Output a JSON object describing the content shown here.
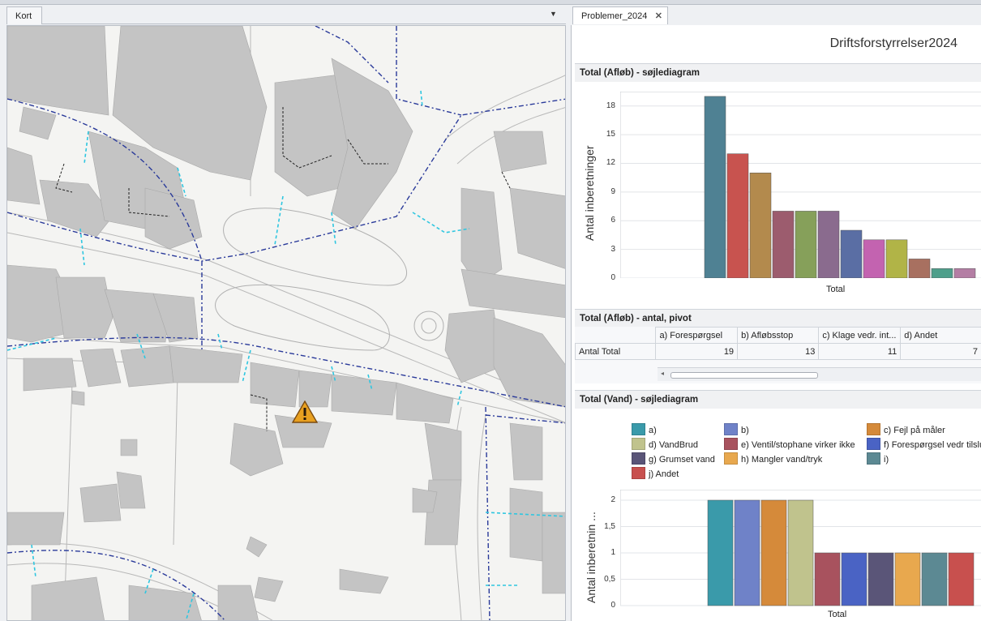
{
  "tabs": {
    "map": "Kort",
    "report": "Problemer_2024",
    "close_glyph": "✕",
    "dropdown_glyph": "▼"
  },
  "report": {
    "title": "Driftsforstyrrelser2024",
    "section1_title": "Total (Afløb) - søjlediagram",
    "section2_title": "Total (Afløb) - antal, pivot",
    "section3_title": "Total (Vand) - søjlediagram"
  },
  "pivot": {
    "columns": [
      "a) Forespørgsel",
      "b) Afløbsstop",
      "c) Klage vedr. int...",
      "d) Andet"
    ],
    "row_label": "Antal Total",
    "values": [
      "19",
      "13",
      "11",
      "7"
    ]
  },
  "map": {
    "warning_icon": "warning-triangle-icon",
    "warning_color": "#e8a020"
  },
  "chart_data": [
    {
      "type": "bar",
      "ylabel": "Antal inberetninger",
      "xlabel": "Total",
      "ylim": [
        0,
        19.5
      ],
      "ticks": [
        "0",
        "3",
        "6",
        "9",
        "12",
        "15",
        "18"
      ],
      "tick_values": [
        0,
        3,
        6,
        9,
        12,
        15,
        18
      ],
      "categories": [
        "Total"
      ],
      "series": [
        {
          "values": [
            19
          ],
          "color": "#4f8193"
        },
        {
          "values": [
            13
          ],
          "color": "#c8534f"
        },
        {
          "values": [
            11
          ],
          "color": "#b38a4d"
        },
        {
          "values": [
            7
          ],
          "color": "#9c5c6e"
        },
        {
          "values": [
            7
          ],
          "color": "#86a05a"
        },
        {
          "values": [
            7
          ],
          "color": "#8a6b8e"
        },
        {
          "values": [
            5
          ],
          "color": "#5a6ea4"
        },
        {
          "values": [
            4
          ],
          "color": "#c363b0"
        },
        {
          "values": [
            4
          ],
          "color": "#b1b447"
        },
        {
          "values": [
            2
          ],
          "color": "#a87060"
        },
        {
          "values": [
            1
          ],
          "color": "#4e9f8b"
        },
        {
          "values": [
            1
          ],
          "color": "#b47ea4"
        }
      ]
    },
    {
      "type": "bar",
      "ylabel": "Antal inberetnin ...",
      "xlabel": "Total",
      "ylim": [
        0,
        2.2
      ],
      "ticks": [
        "0",
        "0,5",
        "1",
        "1,5",
        "2"
      ],
      "tick_values": [
        0,
        0.5,
        1,
        1.5,
        2
      ],
      "categories": [
        "Total"
      ],
      "legend": [
        {
          "name": "a)",
          "color": "#3a9aaa"
        },
        {
          "name": "b)",
          "color": "#6f82c8"
        },
        {
          "name": "c) Fejl på måler",
          "color": "#d58a3a"
        },
        {
          "name": "d) VandBrud",
          "color": "#c0c38d"
        },
        {
          "name": "e) Ventil/stophane virker ikke",
          "color": "#a8525e"
        },
        {
          "name": "f) Forespørgsel vedr tilslutning",
          "color": "#4a63c4"
        },
        {
          "name": "g) Grumset vand",
          "color": "#5a5578"
        },
        {
          "name": "h) Mangler vand/tryk",
          "color": "#e8a84e"
        },
        {
          "name": "i)",
          "color": "#5c8993"
        },
        {
          "name": "j) Andet",
          "color": "#c8504e"
        }
      ],
      "series": [
        {
          "name": "a)",
          "values": [
            2
          ],
          "color": "#3a9aaa"
        },
        {
          "name": "b)",
          "values": [
            2
          ],
          "color": "#6f82c8"
        },
        {
          "name": "c) Fejl på måler",
          "values": [
            2
          ],
          "color": "#d58a3a"
        },
        {
          "name": "d) VandBrud",
          "values": [
            2
          ],
          "color": "#c0c38d"
        },
        {
          "name": "e) Ventil/stophane virker ikke",
          "values": [
            1
          ],
          "color": "#a8525e"
        },
        {
          "name": "f) Forespørgsel vedr tilslutning",
          "values": [
            1
          ],
          "color": "#4a63c4"
        },
        {
          "name": "g) Grumset vand",
          "values": [
            1
          ],
          "color": "#5a5578"
        },
        {
          "name": "h) Mangler vand/tryk",
          "values": [
            1
          ],
          "color": "#e8a84e"
        },
        {
          "name": "i)",
          "values": [
            1
          ],
          "color": "#5c8993"
        },
        {
          "name": "j) Andet",
          "values": [
            1
          ],
          "color": "#c8504e"
        }
      ]
    }
  ]
}
